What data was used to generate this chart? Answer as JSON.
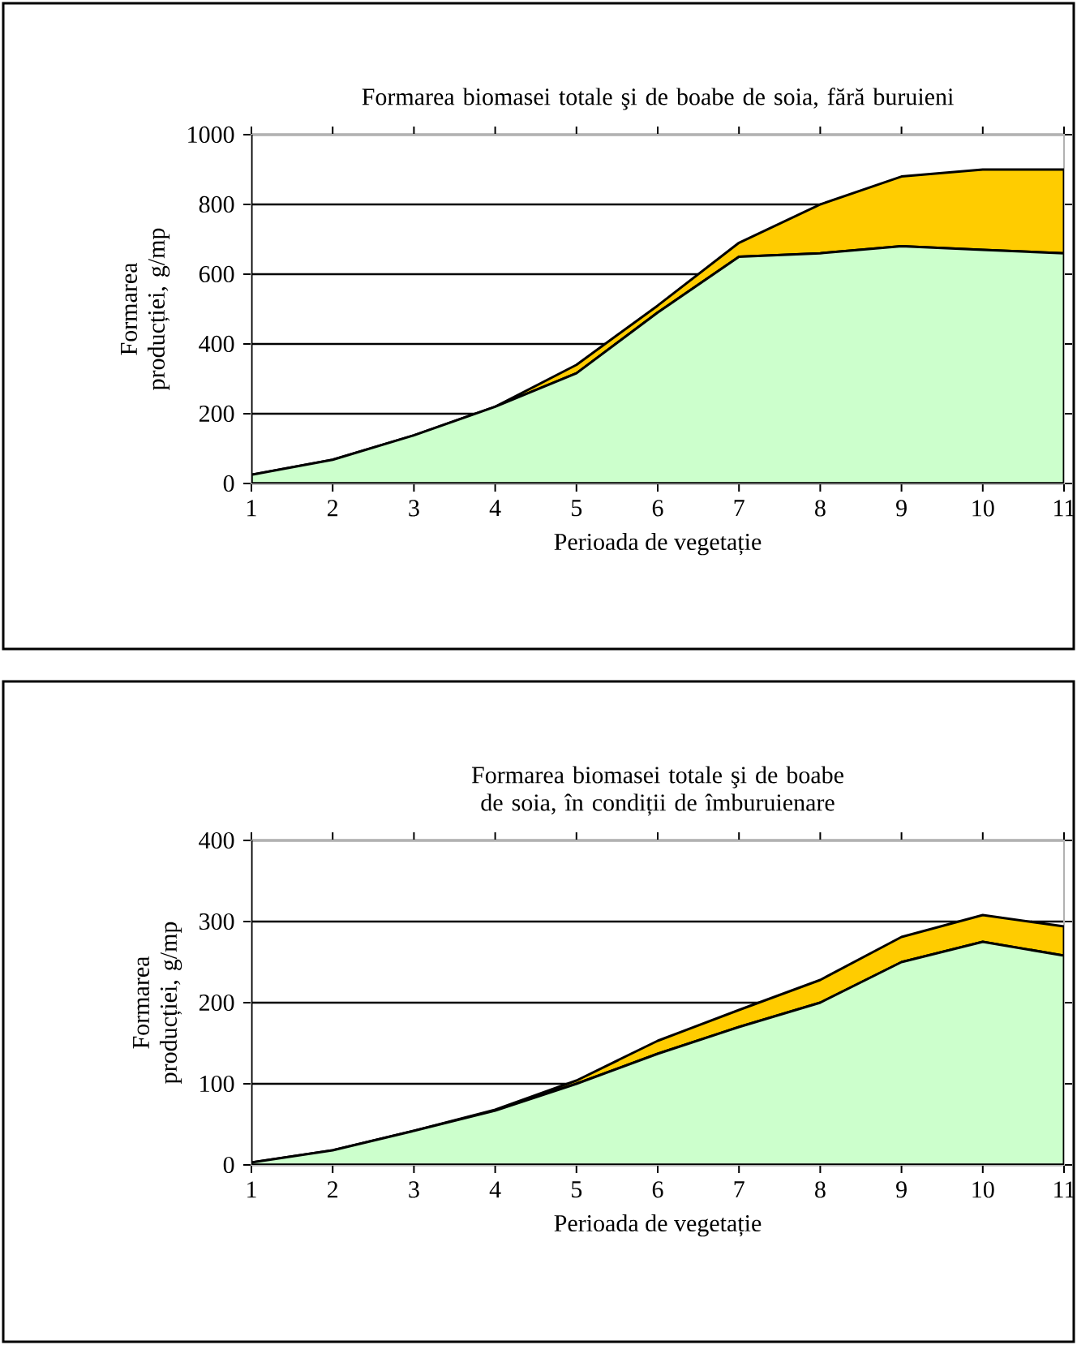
{
  "chart_data": [
    {
      "type": "area",
      "stacked": true,
      "title": "Formarea biomasei totale şi de boabe de soia, fără buruieni",
      "xlabel": "Perioada de vegetație",
      "ylabel": "Formarea producției, g/mp",
      "categories": [
        "1",
        "2",
        "3",
        "4",
        "5",
        "6",
        "7",
        "8",
        "9",
        "10",
        "11"
      ],
      "ylim": [
        0,
        1000
      ],
      "yticks": [
        0,
        200,
        400,
        600,
        800,
        1000
      ],
      "grid": "y",
      "series": [
        {
          "color": "#ccffcc",
          "values": [
            25,
            68,
            138,
            220,
            316,
            490,
            650,
            660,
            680,
            670,
            660
          ]
        },
        {
          "color": "#ffcc00",
          "values": [
            0,
            0,
            0,
            0,
            24,
            20,
            40,
            140,
            200,
            230,
            240
          ]
        }
      ]
    },
    {
      "type": "area",
      "stacked": true,
      "title": "Formarea biomasei totale şi de boabe de soia, în condiții de îmburuienare",
      "xlabel": "Perioada de vegetație",
      "ylabel": "Formarea producției, g/mp",
      "categories": [
        "1",
        "2",
        "3",
        "4",
        "5",
        "6",
        "7",
        "8",
        "9",
        "10",
        "11"
      ],
      "ylim": [
        0,
        400
      ],
      "yticks": [
        0,
        100,
        200,
        300,
        400
      ],
      "grid": "y",
      "series": [
        {
          "color": "#ccffcc",
          "values": [
            3,
            18,
            42,
            67,
            100,
            137,
            170,
            200,
            250,
            275,
            258
          ]
        },
        {
          "color": "#ffcc00",
          "values": [
            0,
            0,
            0,
            1,
            4,
            16,
            21,
            28,
            31,
            33,
            36
          ]
        }
      ]
    }
  ]
}
